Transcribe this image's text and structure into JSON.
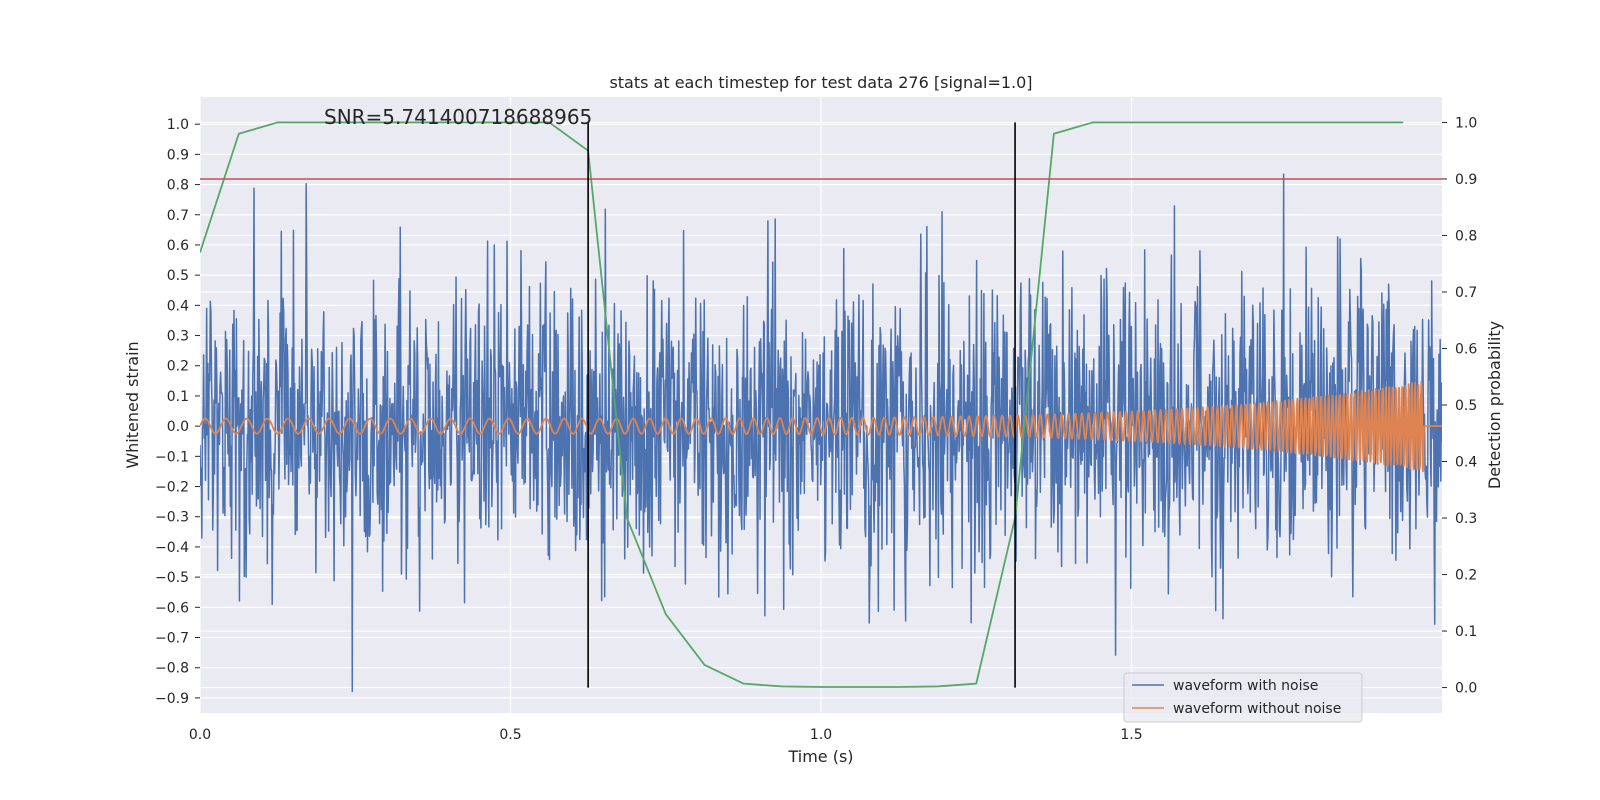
{
  "chart_data": {
    "type": "line",
    "title": "stats at each timestep for test data 276 [signal=1.0]",
    "xlabel": "Time (s)",
    "ylabel": "Whitened strain",
    "y2label": "Detection probability",
    "annotation": "SNR=5.741400718688965",
    "xlim": [
      0.0,
      2.0
    ],
    "ylim": [
      -0.95,
      1.09
    ],
    "y2lim": [
      -0.045,
      1.045
    ],
    "xticks": [
      0.0,
      0.5,
      1.0,
      1.5
    ],
    "xtick_labels": [
      "0.0",
      "0.5",
      "1.0",
      "1.5"
    ],
    "yticks": [
      1.0,
      0.9,
      0.8,
      0.7,
      0.6,
      0.5,
      0.4,
      0.3,
      0.2,
      0.1,
      0.0,
      -0.1,
      -0.2,
      -0.3,
      -0.4,
      -0.5,
      -0.6,
      -0.7,
      -0.8,
      -0.9
    ],
    "ytick_labels": [
      "1.0",
      "0.9",
      "0.8",
      "0.7",
      "0.6",
      "0.5",
      "0.4",
      "0.3",
      "0.2",
      "0.1",
      "0.0",
      "−0.1",
      "−0.2",
      "−0.3",
      "−0.4",
      "−0.5",
      "−0.6",
      "−0.7",
      "−0.8",
      "−0.9"
    ],
    "y2ticks": [
      1.0,
      0.9,
      0.8,
      0.7,
      0.6,
      0.5,
      0.4,
      0.3,
      0.2,
      0.1,
      0.0
    ],
    "y2tick_labels": [
      "1.0",
      "0.9",
      "0.8",
      "0.7",
      "0.6",
      "0.5",
      "0.4",
      "0.3",
      "0.2",
      "0.1",
      "0.0"
    ],
    "series": [
      {
        "name": "waveform with noise",
        "color": "#4c72b0",
        "axis": "left",
        "kind": "noise",
        "x_range": [
          0.0,
          2.0
        ],
        "n_samples": 2048,
        "amplitude_sd": 0.24,
        "seed": 276
      },
      {
        "name": "waveform without noise",
        "color": "#dd8452",
        "axis": "left",
        "kind": "chirp",
        "x_range": [
          0.0,
          1.97
        ],
        "start_amplitude": 0.025,
        "end_amplitude": 0.15,
        "start_freq_hz": 30,
        "end_freq_hz": 200
      },
      {
        "name": "Detection probability",
        "color": "#55a868",
        "axis": "right",
        "x": [
          0.0,
          0.0625,
          0.125,
          0.1875,
          0.25,
          0.3125,
          0.375,
          0.4375,
          0.5,
          0.5625,
          0.625,
          0.6875,
          0.75,
          0.8125,
          0.875,
          0.9375,
          1.0,
          1.0625,
          1.125,
          1.1875,
          1.25,
          1.3125,
          1.375,
          1.4375,
          1.5,
          1.5625,
          1.625,
          1.6875,
          1.75,
          1.8125,
          1.9375
        ],
        "y": [
          0.77,
          0.98,
          1.0,
          1.0,
          1.0,
          1.0,
          1.0,
          1.0,
          1.0,
          1.0,
          0.95,
          0.3,
          0.13,
          0.04,
          0.007,
          0.002,
          0.001,
          0.001,
          0.001,
          0.002,
          0.007,
          0.3,
          0.98,
          1.0,
          1.0,
          1.0,
          1.0,
          1.0,
          1.0,
          1.0,
          1.0
        ]
      }
    ],
    "hlines": [
      {
        "y2": 0.9,
        "color": "#c44e52"
      }
    ],
    "vlines": [
      {
        "x": 0.625,
        "y2_from": 0.0,
        "y2_to": 1.0,
        "color": "#000000"
      },
      {
        "x": 1.3125,
        "y2_from": 0.0,
        "y2_to": 1.0,
        "color": "#000000"
      }
    ],
    "legend": {
      "position": "lower-right",
      "entries": [
        "waveform with noise",
        "waveform without noise"
      ]
    },
    "background": "#eaeaf2",
    "grid": true
  }
}
